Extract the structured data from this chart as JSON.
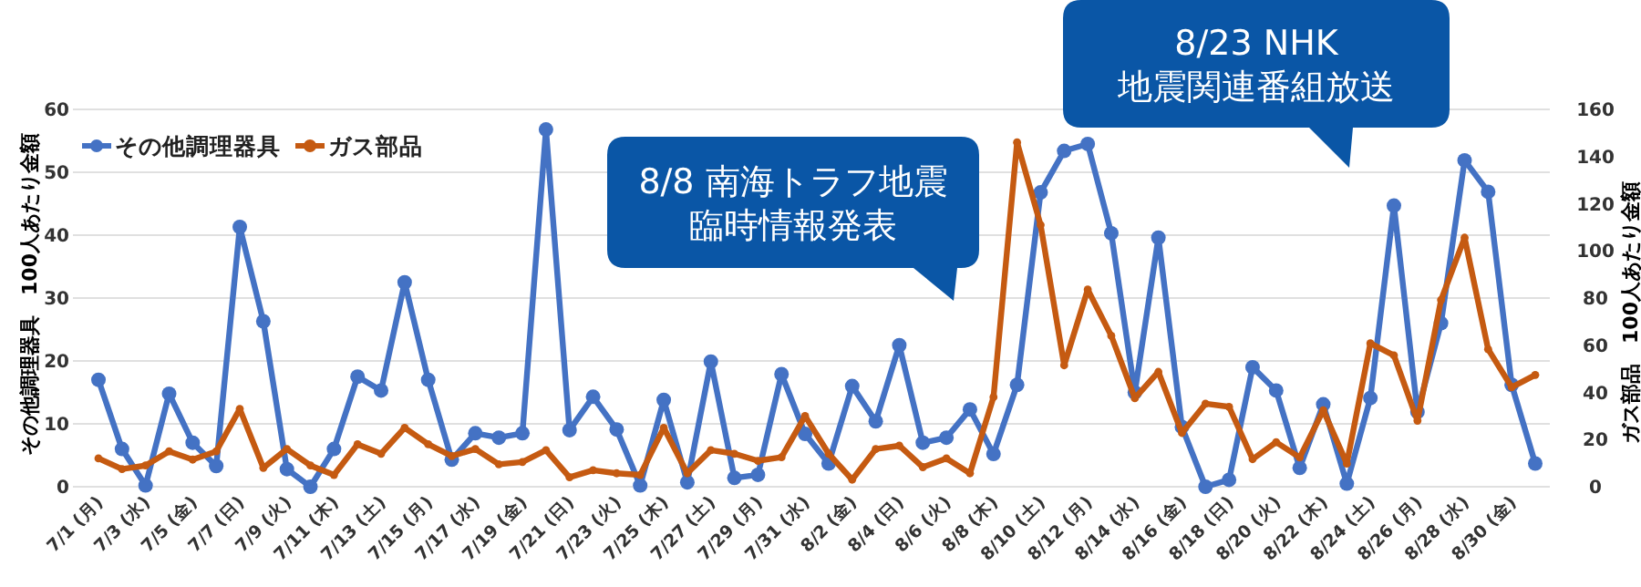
{
  "chart_data": {
    "type": "line",
    "categories": [
      "7/1 (月)",
      null,
      "7/3 (水)",
      null,
      "7/5 (金)",
      null,
      "7/7 (日)",
      null,
      "7/9 (火)",
      null,
      "7/11 (木)",
      null,
      "7/13 (土)",
      null,
      "7/15 (月)",
      null,
      "7/17 (水)",
      null,
      "7/19 (金)",
      null,
      "7/21 (日)",
      null,
      "7/23 (火)",
      null,
      "7/25 (木)",
      null,
      "7/27 (土)",
      null,
      "7/29 (月)",
      null,
      "7/31 (水)",
      null,
      "8/2 (金)",
      null,
      "8/4 (日)",
      null,
      "8/6 (火)",
      null,
      "8/8 (木)",
      null,
      "8/10 (土)",
      null,
      "8/12 (月)",
      null,
      "8/14 (水)",
      null,
      "8/16 (金)",
      null,
      "8/18 (日)",
      null,
      "8/20 (火)",
      null,
      "8/22 (木)",
      null,
      "8/24 (土)",
      null,
      "8/26 (月)",
      null,
      "8/28 (水)",
      null,
      "8/30 (金)",
      null
    ],
    "series": [
      {
        "name": "その他調理器具",
        "color": "#4472c4",
        "values": [
          17,
          6,
          0.2,
          14.8,
          7,
          3.3,
          41.3,
          26.3,
          2.8,
          0,
          6,
          17.5,
          15.3,
          32.5,
          17,
          4.3,
          8.5,
          7.8,
          8.5,
          56.8,
          9,
          14.3,
          9.1,
          0.2,
          13.8,
          0.7,
          19.9,
          1.4,
          1.9,
          17.9,
          8.4,
          3.7,
          16,
          10.4,
          22.5,
          7,
          7.8,
          12.3,
          5.2,
          16.2,
          46.8,
          53.4,
          54.5,
          40.3,
          15,
          39.6,
          9.5,
          0,
          1.1,
          19,
          15.3,
          3,
          13.1,
          0.5,
          14.1,
          44.7,
          11.9,
          26,
          51.9,
          46.9,
          16.2,
          3.7
        ]
      },
      {
        "name": "ガス部品",
        "color": "#c55a11",
        "axis": "y2",
        "values": [
          12,
          7.5,
          9,
          15,
          11.5,
          15,
          33,
          8,
          16,
          9,
          5,
          18,
          14,
          25,
          18,
          13,
          16,
          9.5,
          10.5,
          15.5,
          4,
          7,
          5.7,
          5,
          25,
          5.7,
          15.5,
          14,
          11,
          12.5,
          30,
          14,
          3,
          16,
          17.4,
          8.3,
          12,
          5.7,
          38,
          146,
          111,
          51.5,
          83.6,
          64,
          37.5,
          48.7,
          22.8,
          35.2,
          33.9,
          11.7,
          18.9,
          12.4,
          32.4,
          9.8,
          60.8,
          55.7,
          28,
          79.2,
          105.6,
          58.3,
          42.2,
          47.4
        ]
      }
    ],
    "ylim": [
      0,
      60
    ],
    "yticks": [
      0,
      10,
      20,
      30,
      40,
      50,
      60
    ],
    "y2lim": [
      0,
      160
    ],
    "y2ticks": [
      0,
      20,
      40,
      60,
      80,
      100,
      120,
      140,
      160
    ],
    "ylabel": "その他調理器具　100人あたり金額",
    "y2label": "ガス部品　100人あたり金額",
    "annotations": [
      "8/8 南海トラフ地震",
      "臨時情報発表",
      "8/23 NHK",
      "地震関連番組放送"
    ],
    "grid": "y",
    "legend": "top left",
    "marker": "circle"
  }
}
